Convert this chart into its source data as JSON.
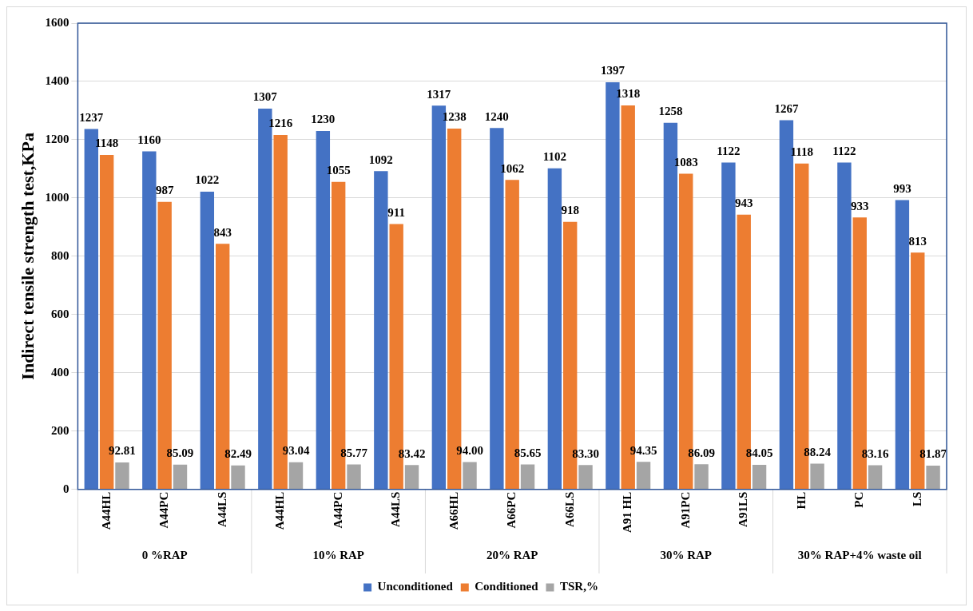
{
  "chart_data": {
    "type": "bar",
    "ylabel": "Indirect tensile strength test,KPa",
    "categories": [
      "A44HL",
      "A44PC",
      "A44LS",
      "A44HL",
      "A44PC",
      "A44LS",
      "A66HL",
      "A66PC",
      "A66LS",
      "A91 HL",
      "A91PC",
      "A91LS",
      "HL",
      "PC",
      "LS"
    ],
    "annotations": [
      "0 %RAP",
      "10% RAP",
      "20% RAP",
      "30% RAP",
      "30% RAP+4% waste oil"
    ],
    "series": [
      {
        "name": "Unconditioned",
        "color": "#4472c4",
        "values": [
          1237,
          1160,
          1022,
          1307,
          1230,
          1092,
          1317,
          1240,
          1102,
          1397,
          1258,
          1122,
          1267,
          1122,
          993
        ],
        "value_labels": [
          "1237",
          "1160",
          "1022",
          "1307",
          "1230",
          "1092",
          "1317",
          "1240",
          "1102",
          "1397",
          "1258",
          "1122",
          "1267",
          "1122",
          "993"
        ]
      },
      {
        "name": "Conditioned",
        "color": "#ed7d31",
        "values": [
          1148,
          987,
          843,
          1216,
          1055,
          911,
          1238,
          1062,
          918,
          1318,
          1083,
          943,
          1118,
          933,
          813
        ],
        "value_labels": [
          "1148",
          "987",
          "843",
          "1216",
          "1055",
          "911",
          "1238",
          "1062",
          "918",
          "1318",
          "1083",
          "943",
          "1118",
          "933",
          "813"
        ]
      },
      {
        "name": "TSR,%",
        "color": "#a5a5a5",
        "values": [
          92.81,
          85.09,
          82.49,
          93.04,
          85.77,
          83.42,
          94.0,
          85.65,
          83.3,
          94.35,
          86.09,
          84.05,
          88.24,
          83.16,
          81.87
        ],
        "value_labels": [
          "92.81",
          "85.09",
          "82.49",
          "93.04",
          "85.77",
          "83.42",
          "94.00",
          "85.65",
          "83.30",
          "94.35",
          "86.09",
          "84.05",
          "88.24",
          "83.16",
          "81.87"
        ]
      }
    ],
    "ylim": [
      0,
      1600
    ],
    "yticks": [
      0,
      200,
      400,
      600,
      800,
      1000,
      1200,
      1400,
      1600
    ],
    "grid": "y",
    "legend": "bottom"
  }
}
